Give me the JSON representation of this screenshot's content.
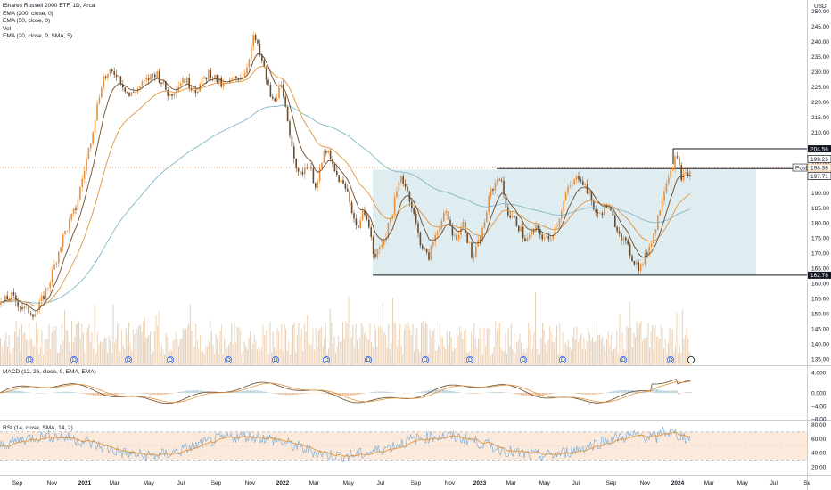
{
  "chart_data": {
    "type": "candlestick",
    "symbol_line": "iShares Russell 2000 ETF, 1D, Arca",
    "currency": "USD",
    "indicators_main": [
      "EMA (200, close, 0)",
      "EMA (50, close, 0)",
      "Vol",
      "EMA (20, close, 0, SMA, 5)"
    ],
    "price_axis": {
      "ticks": [
        "250.00",
        "245.00",
        "240.00",
        "235.00",
        "230.00",
        "225.00",
        "220.00",
        "215.00",
        "210.00",
        "205.00",
        "200.00",
        "195.00",
        "190.00",
        "185.00",
        "180.00",
        "175.00",
        "170.00",
        "165.00",
        "160.00",
        "155.00",
        "150.00",
        "145.00",
        "140.00",
        "135.00"
      ],
      "ylim": [
        133,
        252
      ]
    },
    "time_axis": [
      "Sep",
      "Nov",
      "2021",
      "Mar",
      "May",
      "Jul",
      "Sep",
      "Nov",
      "2022",
      "Mar",
      "May",
      "Jul",
      "Sep",
      "Nov",
      "2023",
      "Mar",
      "May",
      "Jul",
      "Sep",
      "Nov",
      "2024",
      "Mar",
      "May",
      "Jul",
      "Se"
    ],
    "price_path": [
      [
        0,
        153
      ],
      [
        12,
        156
      ],
      [
        25,
        152
      ],
      [
        40,
        150
      ],
      [
        55,
        160
      ],
      [
        70,
        175
      ],
      [
        85,
        185
      ],
      [
        100,
        205
      ],
      [
        115,
        228
      ],
      [
        130,
        230
      ],
      [
        145,
        222
      ],
      [
        160,
        226
      ],
      [
        175,
        230
      ],
      [
        190,
        222
      ],
      [
        205,
        228
      ],
      [
        220,
        224
      ],
      [
        235,
        230
      ],
      [
        250,
        225
      ],
      [
        265,
        228
      ],
      [
        275,
        230
      ],
      [
        285,
        242
      ],
      [
        295,
        232
      ],
      [
        305,
        220
      ],
      [
        315,
        225
      ],
      [
        325,
        210
      ],
      [
        335,
        195
      ],
      [
        345,
        200
      ],
      [
        355,
        192
      ],
      [
        365,
        205
      ],
      [
        375,
        197
      ],
      [
        390,
        190
      ],
      [
        400,
        178
      ],
      [
        410,
        185
      ],
      [
        420,
        168
      ],
      [
        435,
        178
      ],
      [
        450,
        196
      ],
      [
        460,
        188
      ],
      [
        470,
        175
      ],
      [
        480,
        168
      ],
      [
        490,
        178
      ],
      [
        500,
        183
      ],
      [
        510,
        175
      ],
      [
        520,
        180
      ],
      [
        530,
        168
      ],
      [
        540,
        176
      ],
      [
        550,
        190
      ],
      [
        560,
        196
      ],
      [
        570,
        183
      ],
      [
        580,
        180
      ],
      [
        590,
        174
      ],
      [
        600,
        178
      ],
      [
        615,
        174
      ],
      [
        625,
        180
      ],
      [
        635,
        190
      ],
      [
        650,
        196
      ],
      [
        660,
        190
      ],
      [
        670,
        182
      ],
      [
        680,
        186
      ],
      [
        690,
        180
      ],
      [
        700,
        174
      ],
      [
        710,
        168
      ],
      [
        718,
        165
      ],
      [
        725,
        170
      ],
      [
        735,
        178
      ],
      [
        745,
        192
      ],
      [
        752,
        198
      ],
      [
        758,
        202
      ],
      [
        765,
        195
      ],
      [
        775,
        197
      ]
    ],
    "annotations": {
      "range_box": {
        "top": 197.71,
        "bottom": 162.78
      },
      "levels": [
        "204.56",
        "199.26",
        "198.38",
        "197.71",
        "162.78"
      ],
      "post_label": "Post"
    },
    "dividend_markers": [
      "D",
      "D",
      "D",
      "D",
      "D",
      "D",
      "D",
      "D",
      "D",
      "D",
      "D",
      "D",
      "D",
      "D",
      "D"
    ],
    "macd": {
      "title": "MACD (12, 26, close, 9, EMA, EMA)",
      "ticks": [
        "4.000",
        "0.000",
        "−4.00",
        "−8.00"
      ]
    },
    "rsi": {
      "title": "RSI (14, close, SMA, 14, 2)",
      "ticks": [
        "80.00",
        "60.00",
        "40.00",
        "20.00"
      ],
      "band": [
        30,
        70
      ]
    },
    "colors": {
      "up": "#e8903c",
      "down": "#6b4a2a",
      "ema200": "#80b7c8",
      "ema50": "#e0963f",
      "ema20": "#6b4a2a",
      "box": "#dfecf0",
      "rsi_band": "#fbe9dc",
      "rsi_line": "#7fb0d8"
    }
  }
}
